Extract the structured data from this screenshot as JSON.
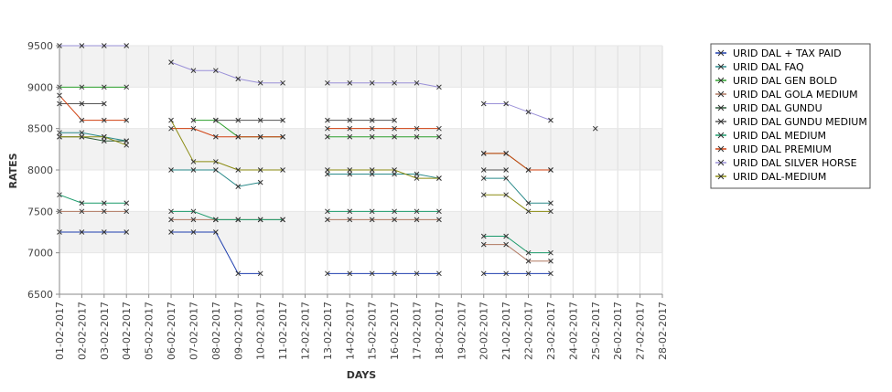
{
  "chart_data": {
    "type": "line",
    "xlabel": "DAYS",
    "ylabel": "RATES",
    "ylim": [
      6500,
      9500
    ],
    "y_ticks": [
      6500,
      7000,
      7500,
      8000,
      8500,
      9000,
      9500
    ],
    "grid": "alternating horizontal bands, vertical gridlines",
    "legend_position": "right",
    "x": [
      "01-02-2017",
      "02-02-2017",
      "03-02-2017",
      "04-02-2017",
      "05-02-2017",
      "06-02-2017",
      "07-02-2017",
      "08-02-2017",
      "09-02-2017",
      "10-02-2017",
      "11-02-2017",
      "12-02-2017",
      "13-02-2017",
      "14-02-2017",
      "15-02-2017",
      "16-02-2017",
      "17-02-2017",
      "18-02-2017",
      "19-02-2017",
      "20-02-2017",
      "21-02-2017",
      "22-02-2017",
      "23-02-2017",
      "24-02-2017",
      "25-02-2017",
      "26-02-2017",
      "27-02-2017",
      "28-02-2017"
    ],
    "series": [
      {
        "name": "URID DAL + TAX PAID",
        "color": "#1f3fae",
        "values": [
          7250,
          7250,
          7250,
          7250,
          null,
          7250,
          7250,
          7250,
          6750,
          6750,
          null,
          null,
          6750,
          6750,
          6750,
          6750,
          6750,
          6750,
          null,
          6750,
          6750,
          6750,
          6750,
          null,
          null,
          null,
          null,
          null
        ]
      },
      {
        "name": "URID DAL FAQ",
        "color": "#2a8a8a",
        "values": [
          8450,
          8450,
          8400,
          8350,
          null,
          8000,
          8000,
          8000,
          7800,
          7850,
          null,
          null,
          7950,
          7950,
          7950,
          7950,
          7950,
          7900,
          null,
          7900,
          7900,
          7600,
          7600,
          null,
          null,
          null,
          null,
          null
        ]
      },
      {
        "name": "URID DAL GEN BOLD",
        "color": "#2ca02c",
        "values": [
          9000,
          9000,
          9000,
          9000,
          null,
          null,
          8600,
          8600,
          8400,
          8400,
          8400,
          null,
          8400,
          8400,
          8400,
          8400,
          8400,
          8400,
          null,
          8200,
          8200,
          8000,
          8000,
          null,
          null,
          null,
          null,
          null
        ]
      },
      {
        "name": "URID DAL GOLA MEDIUM",
        "color": "#b07860",
        "values": [
          7500,
          7500,
          7500,
          7500,
          null,
          7400,
          7400,
          7400,
          7400,
          7400,
          7400,
          null,
          7400,
          7400,
          7400,
          7400,
          7400,
          7400,
          null,
          7100,
          7100,
          6900,
          6900,
          null,
          null,
          null,
          null,
          null
        ]
      },
      {
        "name": "URID DAL GUNDU",
        "color": "#2d5a3a",
        "values": [
          8400,
          8400,
          8350,
          8350,
          null,
          null,
          null,
          null,
          null,
          null,
          null,
          null,
          null,
          null,
          null,
          null,
          null,
          null,
          null,
          null,
          null,
          null,
          null,
          null,
          null,
          null,
          null,
          null
        ]
      },
      {
        "name": "URID DAL GUNDU MEDIUM",
        "color": "#555555",
        "values": [
          8800,
          8800,
          8800,
          null,
          null,
          null,
          null,
          8600,
          8600,
          8600,
          8600,
          null,
          8600,
          8600,
          8600,
          8600,
          null,
          null,
          null,
          8000,
          8000,
          null,
          null,
          null,
          null,
          null,
          null,
          null
        ]
      },
      {
        "name": "URID DAL MEDIUM",
        "color": "#1a9a6a",
        "values": [
          7700,
          7600,
          7600,
          7600,
          null,
          7500,
          7500,
          7400,
          7400,
          7400,
          7400,
          null,
          7500,
          7500,
          7500,
          7500,
          7500,
          7500,
          null,
          7200,
          7200,
          7000,
          7000,
          null,
          null,
          null,
          null,
          null
        ]
      },
      {
        "name": "URID DAL PREMIUM",
        "color": "#d04010",
        "values": [
          8900,
          8600,
          8600,
          8600,
          null,
          8500,
          8500,
          8400,
          8400,
          8400,
          8400,
          null,
          8500,
          8500,
          8500,
          8500,
          8500,
          8500,
          null,
          8200,
          8200,
          8000,
          8000,
          null,
          null,
          null,
          null,
          null
        ]
      },
      {
        "name": "URID DAL SILVER HORSE",
        "color": "#9a90d8",
        "values": [
          9500,
          9500,
          9500,
          9500,
          null,
          9300,
          9200,
          9200,
          9100,
          9050,
          9050,
          null,
          9050,
          9050,
          9050,
          9050,
          9050,
          9000,
          null,
          8800,
          8800,
          8700,
          8600,
          null,
          8500,
          null,
          null,
          null
        ]
      },
      {
        "name": "URID DAL-MEDIUM",
        "color": "#8a8a10",
        "values": [
          8400,
          8400,
          8400,
          8300,
          null,
          8600,
          8100,
          8100,
          8000,
          8000,
          8000,
          null,
          8000,
          8000,
          8000,
          8000,
          7900,
          7900,
          null,
          7700,
          7700,
          7500,
          7500,
          null,
          null,
          null,
          null,
          null
        ]
      }
    ]
  }
}
